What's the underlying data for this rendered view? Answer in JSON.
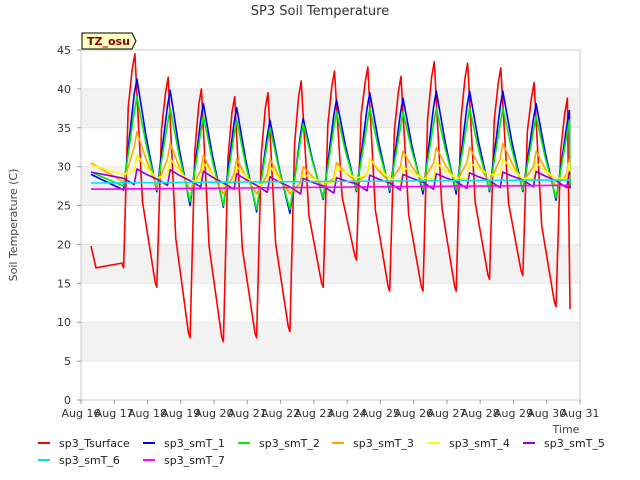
{
  "chart_data": {
    "type": "line",
    "title": "SP3 Soil Temperature",
    "xlabel": "Time",
    "ylabel": "Soil Temperature (C)",
    "badge": "TZ_osu",
    "x_tick_labels": [
      "Aug 16",
      "Aug 17",
      "Aug 18",
      "Aug 19",
      "Aug 20",
      "Aug 21",
      "Aug 22",
      "Aug 23",
      "Aug 24",
      "Aug 25",
      "Aug 26",
      "Aug 27",
      "Aug 28",
      "Aug 29",
      "Aug 30",
      "Aug 31"
    ],
    "xlim": [
      0,
      15
    ],
    "ylim": [
      0,
      45
    ],
    "y_ticks": [
      0,
      5,
      10,
      15,
      20,
      25,
      30,
      35,
      40,
      45
    ],
    "grid_bands": true,
    "series": [
      {
        "name": "sp3_Tsurface",
        "color": "#ff0000",
        "day_peaks": [
          44.5,
          41.5,
          40.0,
          39.0,
          39.5,
          41.0,
          42.3,
          42.8,
          41.6,
          43.5,
          43.3,
          42.7,
          40.8,
          38.8
        ],
        "night_mins": [
          17.0,
          14.5,
          8.0,
          7.5,
          8.0,
          8.8,
          14.5,
          18.0,
          14.0,
          14.0,
          14.0,
          15.5,
          16.0,
          12.0
        ],
        "points": [
          [
            0.3,
            19.8
          ],
          [
            0.45,
            17.0
          ]
        ],
        "end_value": 11.7
      },
      {
        "name": "sp3_smT_1",
        "color": "#0000ff",
        "day_peaks": [
          41.3,
          39.8,
          38.1,
          37.6,
          36.0,
          36.2,
          38.6,
          39.5,
          38.8,
          39.7,
          39.7,
          39.7,
          38.1,
          37.2
        ],
        "night_mins": [
          27.0,
          26.8,
          25.0,
          24.8,
          24.2,
          24.0,
          25.8,
          26.8,
          26.7,
          26.5,
          26.5,
          26.8,
          26.8,
          25.7
        ],
        "start_value": 29.0,
        "end_value": 27.2
      },
      {
        "name": "sp3_smT_2",
        "color": "#00ee00",
        "day_peaks": [
          39.0,
          37.5,
          36.5,
          36.0,
          35.0,
          35.5,
          37.0,
          37.5,
          37.0,
          37.5,
          37.5,
          37.5,
          36.5,
          36.0
        ],
        "night_mins": [
          27.5,
          27.0,
          25.5,
          25.0,
          24.5,
          24.5,
          26.0,
          27.0,
          27.0,
          27.0,
          27.0,
          27.0,
          27.0,
          26.0
        ],
        "start_value": 29.3,
        "end_value": 27.6
      },
      {
        "name": "sp3_smT_3",
        "color": "#ffa500",
        "day_peaks": [
          34.5,
          33.0,
          31.5,
          31.0,
          31.0,
          30.0,
          30.5,
          31.0,
          32.0,
          32.5,
          32.5,
          33.0,
          32.0,
          31.0
        ],
        "night_mins": [
          28.0,
          27.5,
          27.0,
          26.5,
          26.5,
          26.5,
          27.5,
          28.0,
          28.0,
          28.0,
          28.0,
          28.0,
          28.0,
          27.5
        ],
        "start_value": 30.5,
        "end_value": 28.5
      },
      {
        "name": "sp3_smT_4",
        "color": "#ffff00",
        "day_peaks": [
          31.5,
          31.0,
          30.5,
          30.0,
          30.0,
          29.0,
          30.0,
          31.0,
          30.0,
          30.5,
          30.5,
          31.0,
          30.5,
          30.5
        ],
        "night_mins": [
          29.0,
          28.5,
          28.0,
          27.5,
          27.5,
          27.0,
          28.0,
          28.5,
          28.5,
          28.5,
          28.5,
          29.0,
          28.5,
          28.5
        ],
        "start_value": 30.2,
        "end_value": 29.0
      },
      {
        "name": "sp3_smT_5",
        "color": "#9400d3",
        "day_peaks": [
          29.7,
          29.6,
          29.4,
          29.1,
          28.7,
          28.5,
          28.6,
          28.9,
          29.0,
          29.1,
          29.2,
          29.3,
          29.4,
          29.3
        ],
        "night_mins": [
          28.5,
          28.4,
          28.2,
          27.9,
          27.6,
          27.4,
          27.5,
          27.8,
          27.9,
          28.0,
          28.1,
          28.2,
          28.3,
          28.2
        ],
        "start_value": 29.3,
        "end_value": 29.0
      },
      {
        "name": "sp3_smT_6",
        "color": "#00e5ee",
        "points": [
          [
            0.3,
            27.9
          ],
          [
            14.7,
            28.3
          ]
        ]
      },
      {
        "name": "sp3_smT_7",
        "color": "#ff00ff",
        "points": [
          [
            0.3,
            27.1
          ],
          [
            14.7,
            27.6
          ]
        ]
      }
    ]
  }
}
